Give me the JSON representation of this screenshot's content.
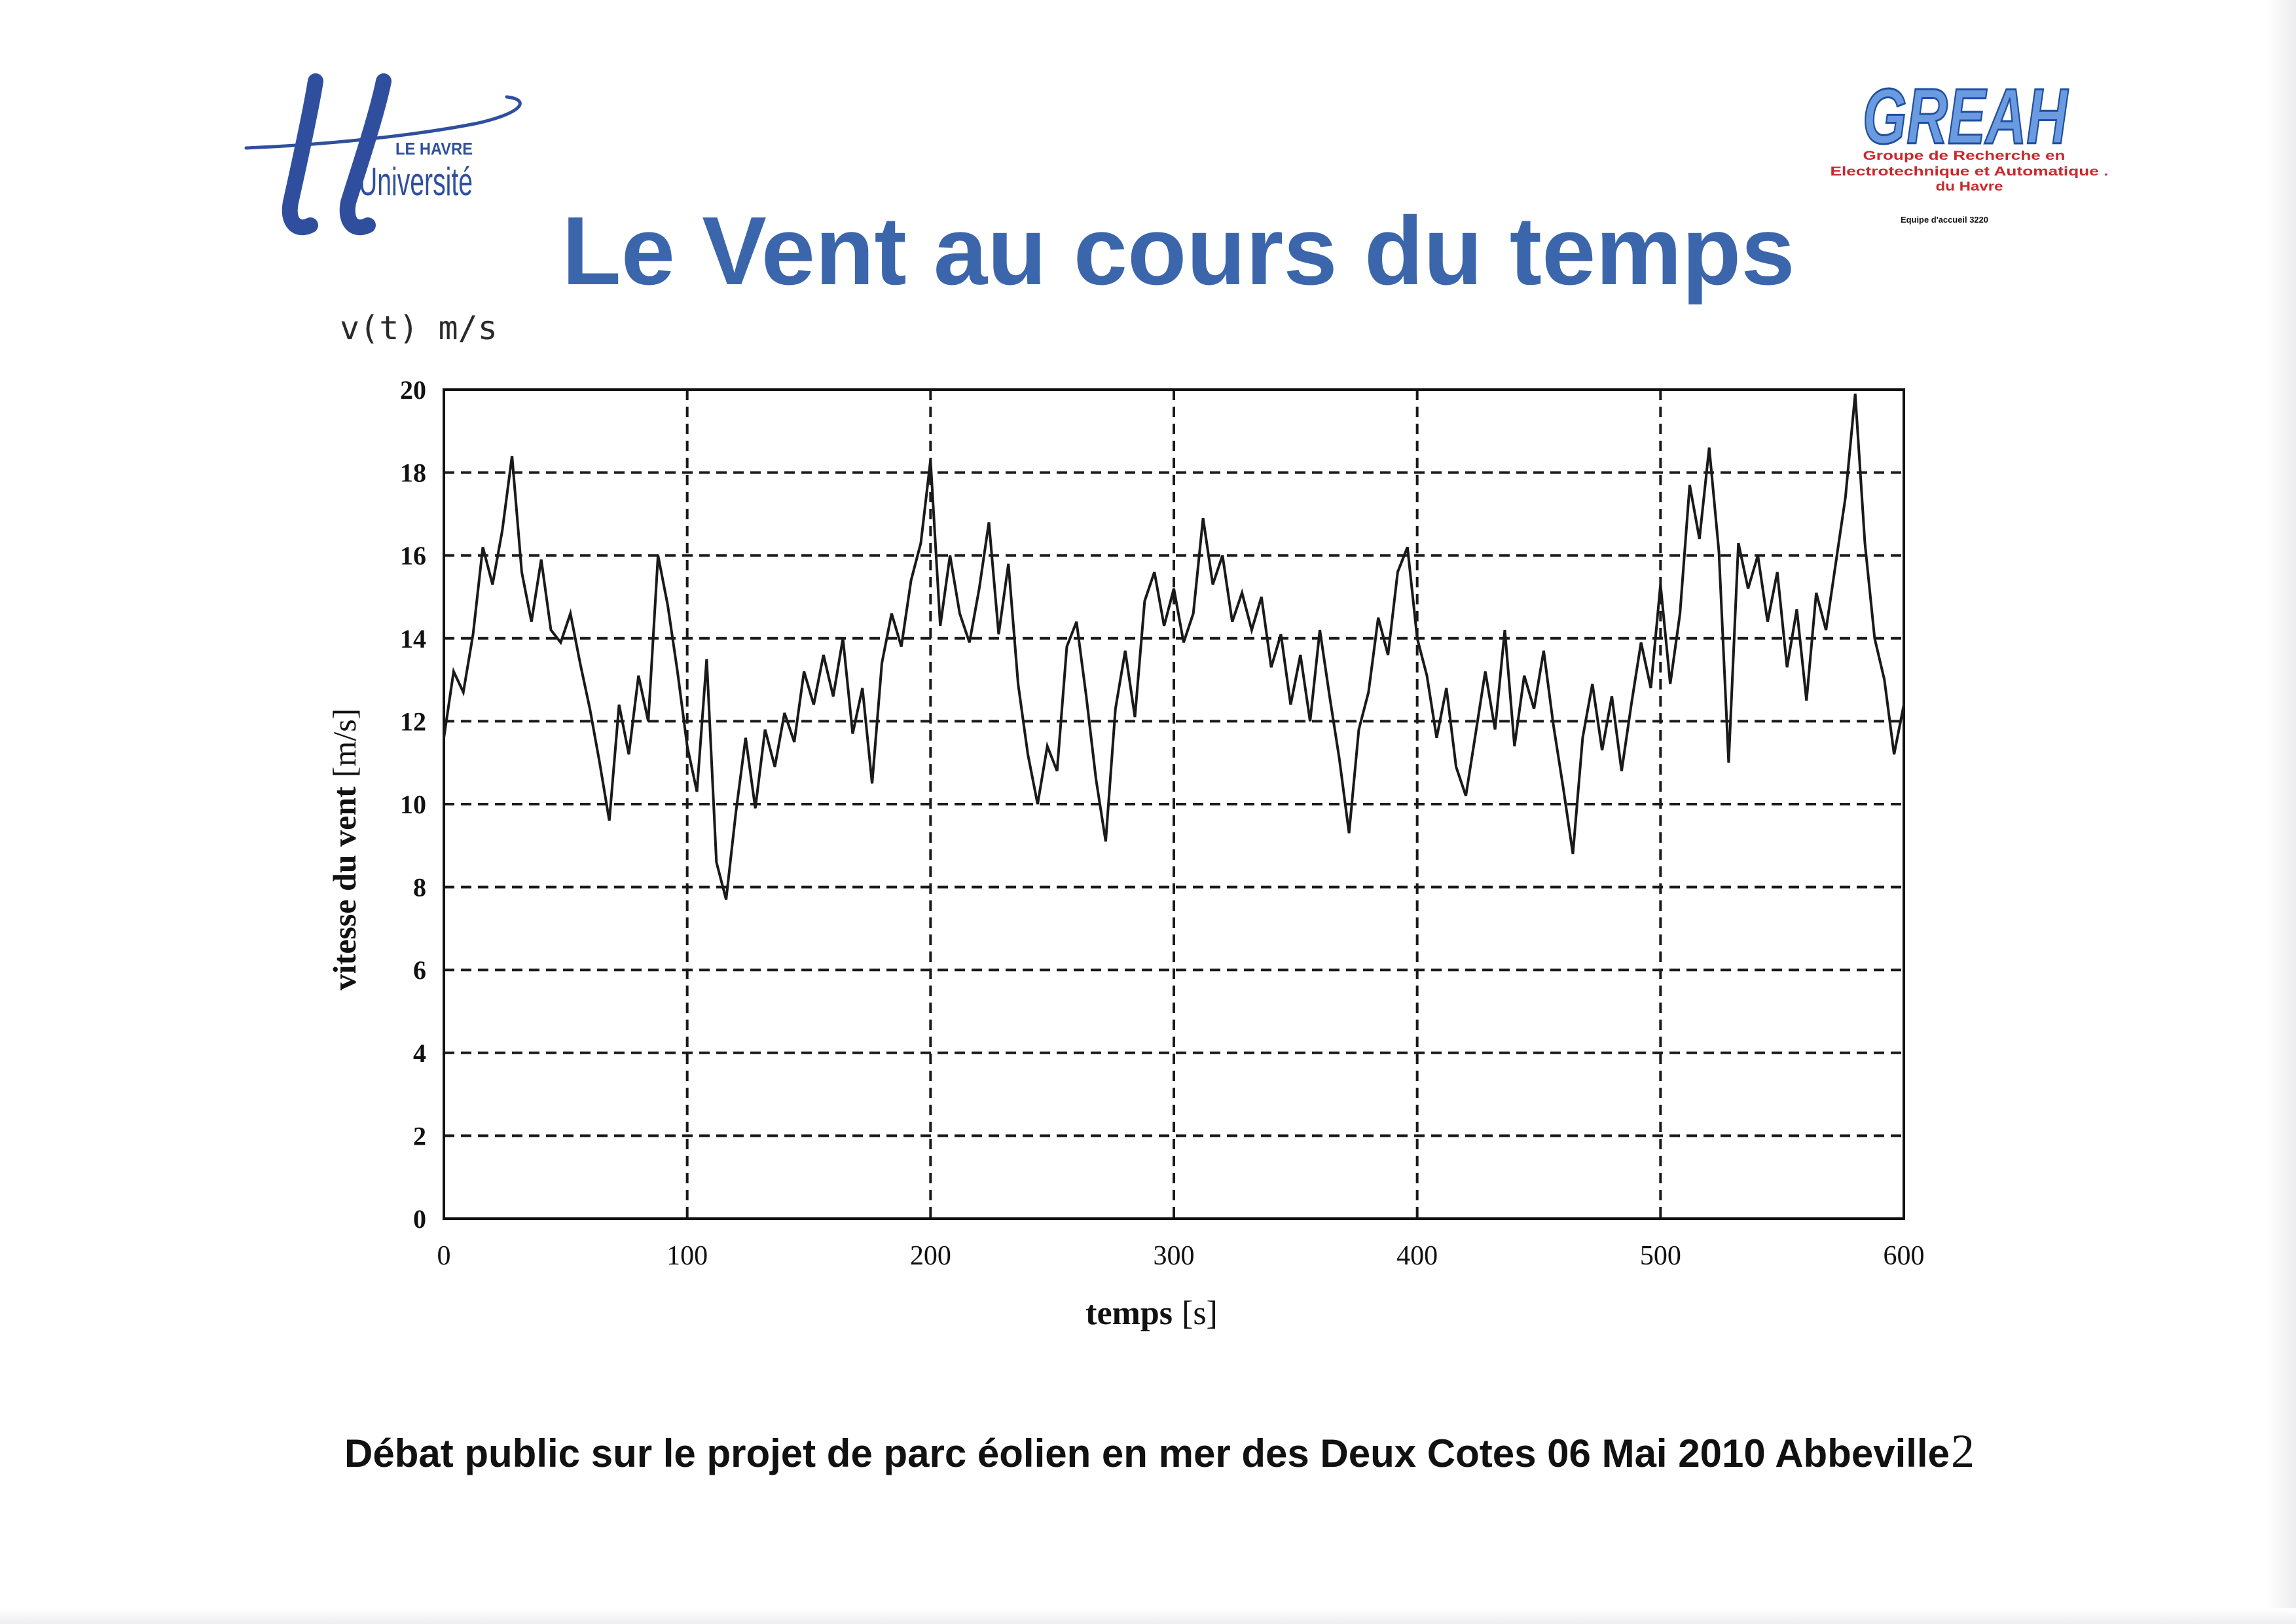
{
  "page": {
    "background": "#ffffff"
  },
  "logos": {
    "left": {
      "line1": "LE HAVRE",
      "line2": "Université",
      "color": "#2f4f9e"
    },
    "right": {
      "name": "GREAH",
      "line1": "Groupe de Recherche en",
      "line2": "Electrotechnique et Automatique .",
      "line3": "du Havre",
      "line4": "Equipe d'accueil 3220",
      "name_fill": "#6a9be0",
      "name_stroke": "#1f4f9e",
      "text_color": "#c8282d"
    }
  },
  "title": "Le Vent au cours du temps",
  "title_color": "#3b66ab",
  "corner_label": "v(t) m/s",
  "chart_data": {
    "type": "line",
    "xlabel": "temps",
    "xlabel_unit": "[s]",
    "ylabel": "vitesse du vent",
    "ylabel_unit": "[m/s]",
    "xlim": [
      0,
      600
    ],
    "ylim": [
      0,
      20
    ],
    "x_ticks": [
      0,
      100,
      200,
      300,
      400,
      500,
      600
    ],
    "y_ticks": [
      0,
      2,
      4,
      6,
      8,
      10,
      12,
      14,
      16,
      18,
      20
    ],
    "grid": true,
    "series": [
      {
        "color": "#1a1a1a",
        "x": [
          0,
          4,
          8,
          12,
          16,
          20,
          24,
          28,
          32,
          36,
          40,
          44,
          48,
          52,
          56,
          60,
          64,
          68,
          72,
          76,
          80,
          84,
          88,
          92,
          96,
          100,
          104,
          108,
          112,
          116,
          120,
          124,
          128,
          132,
          136,
          140,
          144,
          148,
          152,
          156,
          160,
          164,
          168,
          172,
          176,
          180,
          184,
          188,
          192,
          196,
          200,
          204,
          208,
          212,
          216,
          220,
          224,
          228,
          232,
          236,
          240,
          244,
          248,
          252,
          256,
          260,
          264,
          268,
          272,
          276,
          280,
          284,
          288,
          292,
          296,
          300,
          304,
          308,
          312,
          316,
          320,
          324,
          328,
          332,
          336,
          340,
          344,
          348,
          352,
          356,
          360,
          364,
          368,
          372,
          376,
          380,
          384,
          388,
          392,
          396,
          400,
          404,
          408,
          412,
          416,
          420,
          424,
          428,
          432,
          436,
          440,
          444,
          448,
          452,
          456,
          460,
          464,
          468,
          472,
          476,
          480,
          484,
          488,
          492,
          496,
          500,
          504,
          508,
          512,
          516,
          520,
          524,
          528,
          532,
          536,
          540,
          544,
          548,
          552,
          556,
          560,
          564,
          568,
          572,
          576,
          580,
          584,
          588,
          592,
          596,
          600
        ],
        "y": [
          11.6,
          13.2,
          12.7,
          14.1,
          16.2,
          15.3,
          16.6,
          18.4,
          15.6,
          14.4,
          15.9,
          14.2,
          13.9,
          14.6,
          13.4,
          12.3,
          11.0,
          9.6,
          12.4,
          11.2,
          13.1,
          12.0,
          16.0,
          14.8,
          13.2,
          11.4,
          10.3,
          13.5,
          8.6,
          7.7,
          9.8,
          11.6,
          9.9,
          11.8,
          10.9,
          12.2,
          11.5,
          13.2,
          12.4,
          13.6,
          12.6,
          14.0,
          11.7,
          12.8,
          10.5,
          13.4,
          14.6,
          13.8,
          15.4,
          16.3,
          18.3,
          14.3,
          16.0,
          14.6,
          13.9,
          15.2,
          16.8,
          14.1,
          15.8,
          12.9,
          11.2,
          10.0,
          11.4,
          10.8,
          13.8,
          14.4,
          12.6,
          10.6,
          9.1,
          12.3,
          13.7,
          12.1,
          14.9,
          15.6,
          14.3,
          15.2,
          13.9,
          14.6,
          16.9,
          15.3,
          16.0,
          14.4,
          15.1,
          14.2,
          15.0,
          13.3,
          14.1,
          12.4,
          13.6,
          12.0,
          14.2,
          12.6,
          11.1,
          9.3,
          11.8,
          12.7,
          14.5,
          13.6,
          15.6,
          16.2,
          14.0,
          13.1,
          11.6,
          12.8,
          10.9,
          10.2,
          11.7,
          13.2,
          11.8,
          14.2,
          11.4,
          13.1,
          12.3,
          13.7,
          11.9,
          10.4,
          8.8,
          11.6,
          12.9,
          11.3,
          12.6,
          10.8,
          12.4,
          13.9,
          12.8,
          15.3,
          12.9,
          14.6,
          17.7,
          16.4,
          18.6,
          16.1,
          11.0,
          16.3,
          15.2,
          16.0,
          14.4,
          15.6,
          13.3,
          14.7,
          12.5,
          15.1,
          14.2,
          15.8,
          17.4,
          19.9,
          16.3,
          14.0,
          13.0,
          11.2,
          12.4
        ]
      }
    ]
  },
  "footer": {
    "text": "Débat public sur le projet de parc éolien en mer des Deux Cotes 06 Mai 2010 Abbeville",
    "page_number": "2"
  }
}
